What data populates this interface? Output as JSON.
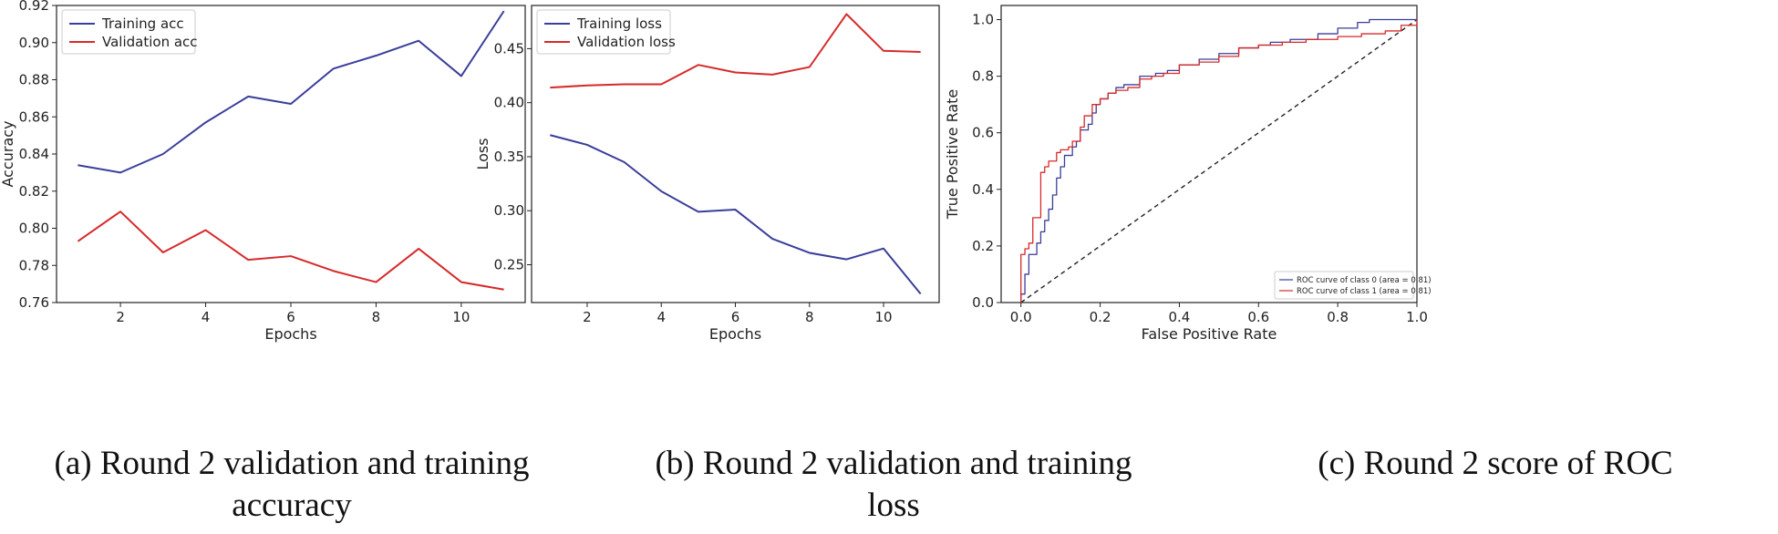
{
  "chart_data": [
    {
      "type": "line",
      "title": "",
      "xlabel": "Epochs",
      "ylabel": "Accuracy",
      "xlim": [
        0.5,
        11.5
      ],
      "ylim": [
        0.76,
        0.92
      ],
      "xticks": [
        2,
        4,
        6,
        8,
        10
      ],
      "xtick_labels": [
        "2",
        "4",
        "6",
        "8",
        "10"
      ],
      "yticks": [
        0.76,
        0.78,
        0.8,
        0.82,
        0.84,
        0.86,
        0.88,
        0.9,
        0.92
      ],
      "ytick_labels": [
        "0.76",
        "0.78",
        "0.80",
        "0.82",
        "0.84",
        "0.86",
        "0.88",
        "0.90",
        "0.92"
      ],
      "legend_position": "top-left",
      "x": [
        1,
        2,
        3,
        4,
        5,
        6,
        7,
        8,
        9,
        10,
        11
      ],
      "series": [
        {
          "name": "Training acc",
          "color": "#3a3d9a",
          "values": [
            0.834,
            0.83,
            0.84,
            0.857,
            0.871,
            0.867,
            0.886,
            0.893,
            0.901,
            0.882,
            0.917
          ]
        },
        {
          "name": "Validation acc",
          "color": "#d62a2a",
          "values": [
            0.793,
            0.809,
            0.787,
            0.799,
            0.783,
            0.785,
            0.777,
            0.771,
            0.789,
            0.771,
            0.767
          ]
        }
      ]
    },
    {
      "type": "line",
      "title": "",
      "xlabel": "Epochs",
      "ylabel": "Loss",
      "xlim": [
        0.5,
        11.5
      ],
      "ylim": [
        0.215,
        0.49
      ],
      "xticks": [
        2,
        4,
        6,
        8,
        10
      ],
      "xtick_labels": [
        "2",
        "4",
        "6",
        "8",
        "10"
      ],
      "yticks": [
        0.25,
        0.3,
        0.35,
        0.4,
        0.45
      ],
      "ytick_labels": [
        "0.25",
        "0.30",
        "0.35",
        "0.40",
        "0.45"
      ],
      "legend_position": "top-left",
      "x": [
        1,
        2,
        3,
        4,
        5,
        6,
        7,
        8,
        9,
        10,
        11
      ],
      "series": [
        {
          "name": "Training loss",
          "color": "#3a3d9a",
          "values": [
            0.37,
            0.361,
            0.345,
            0.318,
            0.299,
            0.301,
            0.274,
            0.261,
            0.255,
            0.265,
            0.223
          ]
        },
        {
          "name": "Validation loss",
          "color": "#d62a2a",
          "values": [
            0.414,
            0.416,
            0.417,
            0.417,
            0.435,
            0.428,
            0.426,
            0.433,
            0.482,
            0.448,
            0.447
          ]
        }
      ]
    },
    {
      "type": "line",
      "title": "",
      "xlabel": "False Positive Rate",
      "ylabel": "True Positive Rate",
      "xlim": [
        -0.05,
        1.0
      ],
      "ylim": [
        0.0,
        1.05
      ],
      "xticks": [
        0.0,
        0.2,
        0.4,
        0.6,
        0.8,
        1.0
      ],
      "xtick_labels": [
        "0.0",
        "0.2",
        "0.4",
        "0.6",
        "0.8",
        "1.0"
      ],
      "yticks": [
        0.0,
        0.2,
        0.4,
        0.6,
        0.8,
        1.0
      ],
      "ytick_labels": [
        "0.0",
        "0.2",
        "0.4",
        "0.6",
        "0.8",
        "1.0"
      ],
      "legend_position": "bottom-right",
      "reference_line": {
        "x": [
          0,
          1
        ],
        "y": [
          0,
          1
        ],
        "style": "dashed",
        "color": "#222222"
      },
      "series": [
        {
          "name": "ROC curve of class 0 (area = 0.81)",
          "color": "#3a3d9a",
          "x": [
            0.0,
            0.0,
            0.01,
            0.01,
            0.02,
            0.02,
            0.04,
            0.05,
            0.06,
            0.07,
            0.08,
            0.09,
            0.1,
            0.11,
            0.13,
            0.14,
            0.15,
            0.17,
            0.18,
            0.19,
            0.2,
            0.22,
            0.24,
            0.26,
            0.3,
            0.34,
            0.37,
            0.4,
            0.45,
            0.5,
            0.55,
            0.6,
            0.63,
            0.68,
            0.75,
            0.8,
            0.85,
            0.88,
            0.92,
            1.0
          ],
          "y": [
            0.0,
            0.03,
            0.05,
            0.1,
            0.14,
            0.17,
            0.21,
            0.25,
            0.29,
            0.33,
            0.38,
            0.44,
            0.48,
            0.52,
            0.55,
            0.57,
            0.61,
            0.63,
            0.67,
            0.7,
            0.72,
            0.74,
            0.76,
            0.77,
            0.8,
            0.81,
            0.82,
            0.84,
            0.86,
            0.88,
            0.9,
            0.91,
            0.92,
            0.93,
            0.95,
            0.97,
            0.99,
            1.0,
            1.0,
            1.0
          ]
        },
        {
          "name": "ROC curve of class 1 (area = 0.81)",
          "color": "#d62a2a",
          "x": [
            0.0,
            0.0,
            0.01,
            0.02,
            0.03,
            0.03,
            0.05,
            0.05,
            0.06,
            0.07,
            0.09,
            0.1,
            0.12,
            0.13,
            0.15,
            0.16,
            0.18,
            0.2,
            0.22,
            0.24,
            0.27,
            0.3,
            0.33,
            0.36,
            0.4,
            0.45,
            0.5,
            0.55,
            0.6,
            0.66,
            0.72,
            0.8,
            0.86,
            0.92,
            0.96,
            1.0
          ],
          "y": [
            0.0,
            0.17,
            0.19,
            0.21,
            0.22,
            0.3,
            0.38,
            0.46,
            0.48,
            0.5,
            0.53,
            0.54,
            0.55,
            0.57,
            0.62,
            0.66,
            0.7,
            0.72,
            0.74,
            0.75,
            0.76,
            0.79,
            0.8,
            0.81,
            0.84,
            0.85,
            0.87,
            0.9,
            0.91,
            0.92,
            0.93,
            0.94,
            0.95,
            0.96,
            0.98,
            1.0
          ]
        }
      ]
    }
  ],
  "captions": [
    {
      "line1": "(a) Round 2 validation and training",
      "line2": "accuracy"
    },
    {
      "line1": "(b) Round 2 validation and training",
      "line2": "loss"
    },
    {
      "line1": "(c) Round 2 score of ROC",
      "line2": ""
    }
  ]
}
